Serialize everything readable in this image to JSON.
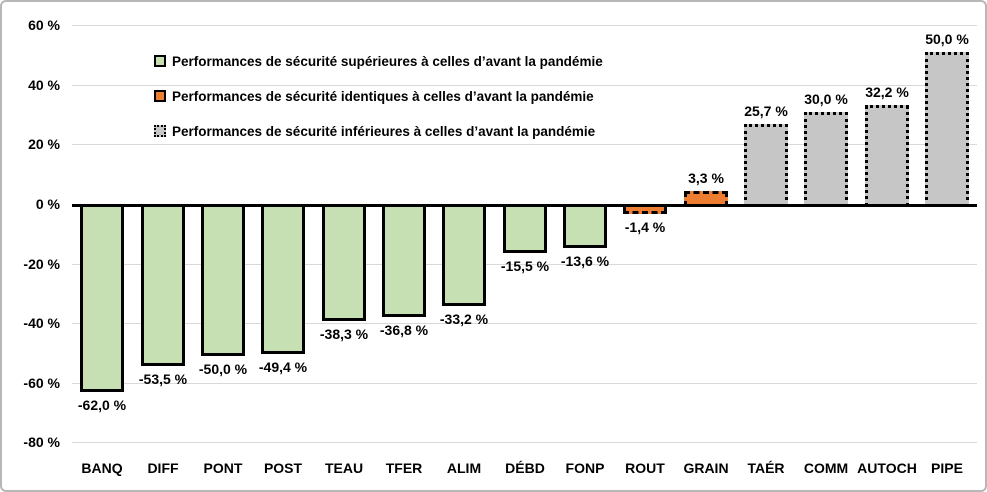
{
  "chart_data": {
    "type": "bar",
    "title": "",
    "xlabel": "",
    "ylabel": "",
    "ylim": [
      -80,
      60
    ],
    "grid": "horizontal",
    "legend_position": "top-left-inside",
    "value_format": "french-percent",
    "yticks": [
      {
        "value": 60,
        "label": "60 %"
      },
      {
        "value": 40,
        "label": "40 %"
      },
      {
        "value": 20,
        "label": "20 %"
      },
      {
        "value": 0,
        "label": "0 %"
      },
      {
        "value": -20,
        "label": "-20 %"
      },
      {
        "value": -40,
        "label": "-40 %"
      },
      {
        "value": -60,
        "label": "-60 %"
      },
      {
        "value": -80,
        "label": "-80 %"
      }
    ],
    "categories": [
      "BANQ",
      "DIFF",
      "PONT",
      "POST",
      "TEAU",
      "TFER",
      "ALIM",
      "DÉBD",
      "FONP",
      "ROUT",
      "GRAIN",
      "TAÉR",
      "COMM",
      "AUTOCH",
      "PIPE"
    ],
    "bars": [
      {
        "category": "BANQ",
        "value": -62.0,
        "label": "-62,0 %",
        "group": "superior"
      },
      {
        "category": "DIFF",
        "value": -53.5,
        "label": "-53,5 %",
        "group": "superior"
      },
      {
        "category": "PONT",
        "value": -50.0,
        "label": "-50,0 %",
        "group": "superior"
      },
      {
        "category": "POST",
        "value": -49.4,
        "label": "-49,4 %",
        "group": "superior"
      },
      {
        "category": "TEAU",
        "value": -38.3,
        "label": "-38,3 %",
        "group": "superior"
      },
      {
        "category": "TFER",
        "value": -36.8,
        "label": "-36,8 %",
        "group": "superior"
      },
      {
        "category": "ALIM",
        "value": -33.2,
        "label": "-33,2 %",
        "group": "superior"
      },
      {
        "category": "DÉBD",
        "value": -15.5,
        "label": "-15,5 %",
        "group": "superior"
      },
      {
        "category": "FONP",
        "value": -13.6,
        "label": "-13,6 %",
        "group": "superior"
      },
      {
        "category": "ROUT",
        "value": -1.4,
        "label": "-1,4 %",
        "group": "identical"
      },
      {
        "category": "GRAIN",
        "value": 3.3,
        "label": "3,3 %",
        "group": "identical"
      },
      {
        "category": "TAÉR",
        "value": 25.7,
        "label": "25,7 %",
        "group": "inferior"
      },
      {
        "category": "COMM",
        "value": 30.0,
        "label": "30,0 %",
        "group": "inferior"
      },
      {
        "category": "AUTOCH",
        "value": 32.2,
        "label": "32,2 %",
        "group": "inferior"
      },
      {
        "category": "PIPE",
        "value": 50.0,
        "label": "50,0 %",
        "group": "inferior"
      }
    ],
    "groups": {
      "superior": {
        "color": "#c6e0b4",
        "border_color": "#000000",
        "border_style": "solid"
      },
      "identical": {
        "color": "#ed7d31",
        "border_color": "#000000",
        "border_style": "dashed"
      },
      "inferior": {
        "color": "#c6c6c6",
        "border_color": "#000000",
        "border_style": "dotted"
      }
    },
    "legend": [
      {
        "group": "superior",
        "label": "Performances de sécurité supérieures à celles d’avant la pandémie"
      },
      {
        "group": "identical",
        "label": "Performances de sécurité identiques à celles d’avant la pandémie"
      },
      {
        "group": "inferior",
        "label": "Performances de sécurité inférieures à celles d’avant la pandémie"
      }
    ],
    "colors": {
      "axis": "#000000",
      "gridline": "#d9d9d9",
      "background": "#ffffff",
      "figure_border": "#b7b7b7",
      "text": "#000000"
    }
  }
}
